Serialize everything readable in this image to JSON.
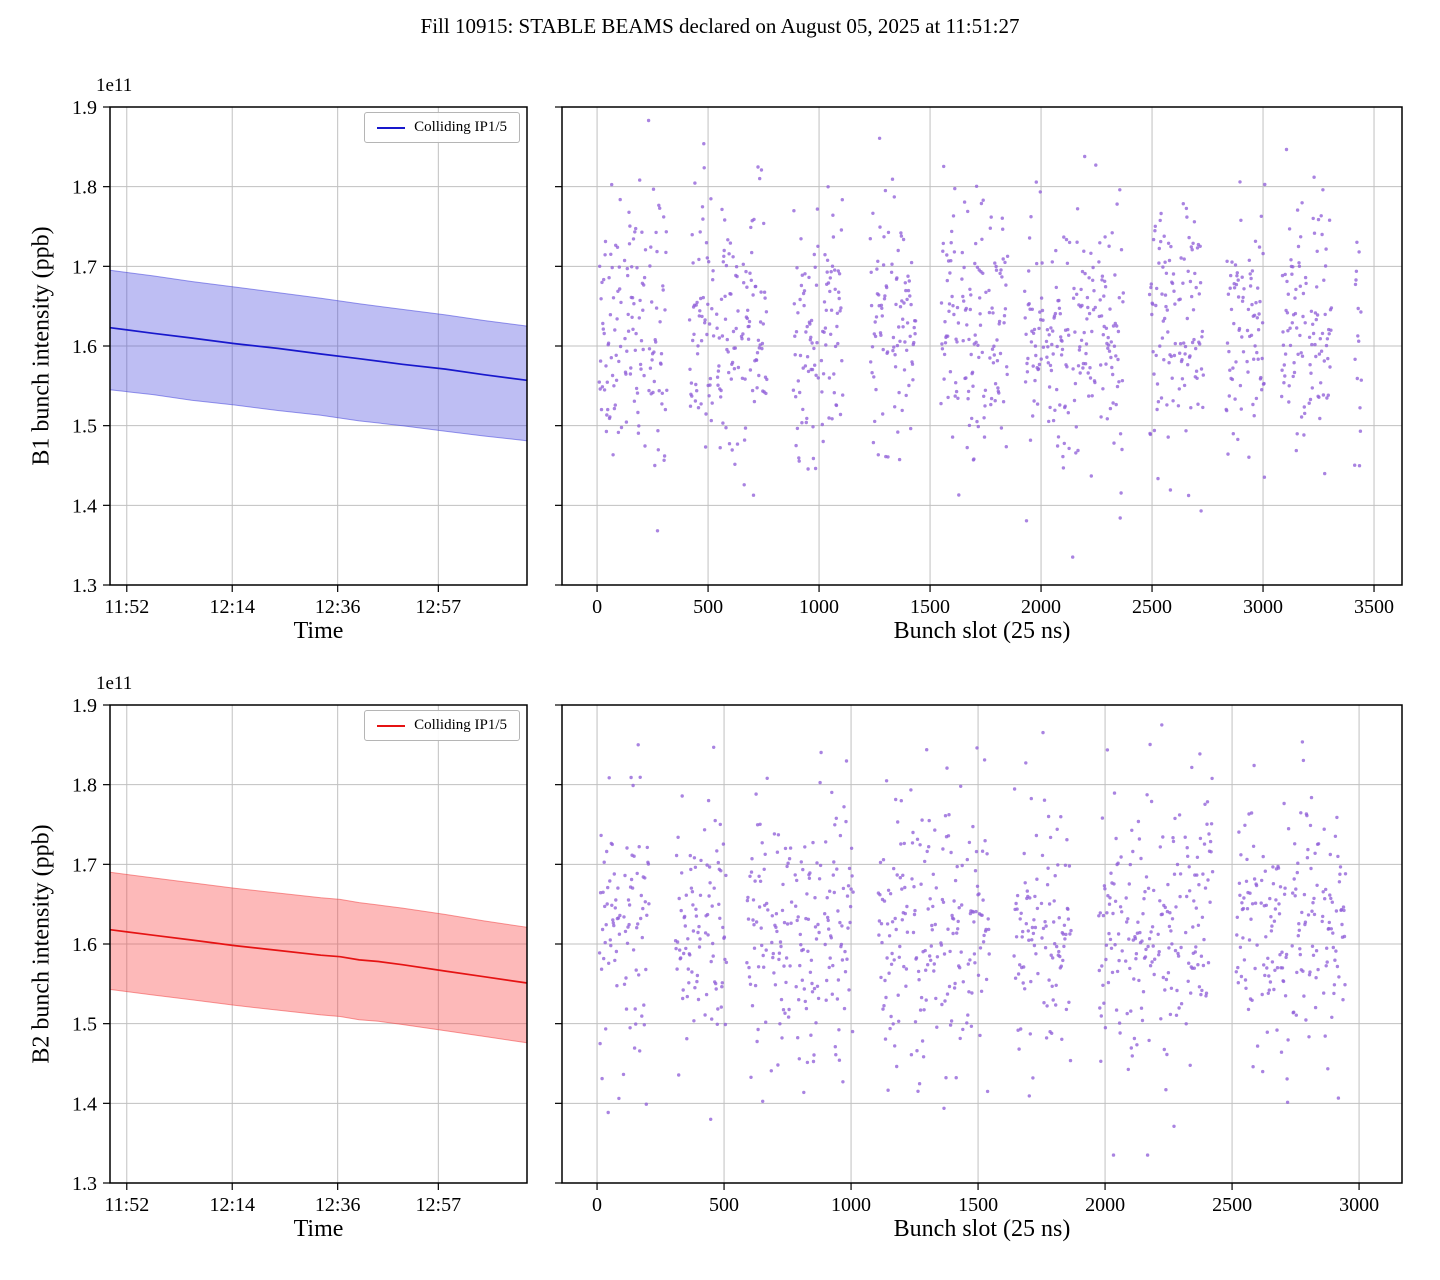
{
  "figure": {
    "title": "Fill 10915: STABLE BEAMS declared on August 05, 2025 at 11:51:27",
    "background": "#ffffff",
    "grid_color": "#c0c0c0",
    "spine_color": "#000000"
  },
  "chart_data": [
    {
      "id": "b1-time-series",
      "type": "line",
      "xlabel": "Time",
      "ylabel": "B1 bunch intensity (ppb)",
      "y_offset_label": "1e11",
      "legend": [
        "Colliding IP1/5"
      ],
      "legend_position": "upper right",
      "grid": true,
      "xlim": [
        0,
        87
      ],
      "ylim": [
        1.3,
        1.9
      ],
      "x_tick_pos": [
        3.5,
        25.5,
        47.5,
        68.5
      ],
      "x_tick_labels": [
        "11:52",
        "12:14",
        "12:36",
        "12:57"
      ],
      "y_ticks": [
        1.3,
        1.4,
        1.5,
        1.6,
        1.7,
        1.8,
        1.9
      ],
      "show_y_tick_labels": true,
      "line_color": "#1818cc",
      "band_color": "rgba(70,70,220,0.35)",
      "band_edge_color": "rgba(70,70,220,0.55)",
      "x": [
        0,
        9,
        17,
        26,
        35,
        44,
        52,
        61,
        70,
        78,
        87
      ],
      "mean": [
        1.623,
        1.616,
        1.61,
        1.603,
        1.597,
        1.59,
        1.584,
        1.577,
        1.571,
        1.564,
        1.557
      ],
      "upper": [
        1.695,
        1.688,
        1.681,
        1.674,
        1.667,
        1.66,
        1.653,
        1.646,
        1.639,
        1.632,
        1.625
      ],
      "lower": [
        1.545,
        1.539,
        1.532,
        1.526,
        1.519,
        1.513,
        1.506,
        1.5,
        1.493,
        1.487,
        1.481
      ],
      "units": "1e11 ppb"
    },
    {
      "id": "b1-bunch-slots",
      "type": "scatter",
      "xlabel": "Bunch slot (25 ns)",
      "ylabel": "",
      "grid": true,
      "xlim": [
        -158,
        3626
      ],
      "ylim": [
        1.3,
        1.9
      ],
      "x_ticks": [
        0,
        500,
        1000,
        1500,
        2000,
        2500,
        3000,
        3500
      ],
      "y_ticks": [
        1.3,
        1.4,
        1.5,
        1.6,
        1.7,
        1.8,
        1.9
      ],
      "show_y_tick_labels": false,
      "dot_color": "#9160d8",
      "dot_opacity": 0.78,
      "points_synthesis": {
        "seed": 11,
        "slot_start": 10,
        "slot_max": 3444,
        "y_mean": 1.622,
        "y_std": 0.08,
        "y_min": 1.335,
        "y_max": 1.883,
        "low_outlier_rate": 0.013,
        "high_outlier_rate": 0.009,
        "train": {
          "n_sub_min": 2,
          "n_sub_max": 4,
          "sub_len_min": 40,
          "sub_len_max": 60,
          "sub_spacing": 2,
          "sub_gap": 12,
          "macro_gap_min": 60,
          "macro_gap_max": 115
        }
      }
    },
    {
      "id": "b2-time-series",
      "type": "line",
      "xlabel": "Time",
      "ylabel": "B2 bunch intensity (ppb)",
      "y_offset_label": "1e11",
      "legend": [
        "Colliding IP1/5"
      ],
      "legend_position": "upper right",
      "grid": true,
      "xlim": [
        0,
        87
      ],
      "ylim": [
        1.3,
        1.9
      ],
      "x_tick_pos": [
        3.5,
        25.5,
        47.5,
        68.5
      ],
      "x_tick_labels": [
        "11:52",
        "12:14",
        "12:36",
        "12:57"
      ],
      "y_ticks": [
        1.3,
        1.4,
        1.5,
        1.6,
        1.7,
        1.8,
        1.9
      ],
      "show_y_tick_labels": true,
      "line_color": "#e51313",
      "band_color": "rgba(250,70,70,0.38)",
      "band_edge_color": "rgba(240,70,70,0.55)",
      "x": [
        0,
        9,
        17,
        26,
        35,
        44,
        48,
        52,
        56,
        61,
        70,
        78,
        87
      ],
      "mean": [
        1.618,
        1.611,
        1.605,
        1.598,
        1.592,
        1.586,
        1.584,
        1.58,
        1.578,
        1.574,
        1.566,
        1.559,
        1.551
      ],
      "upper": [
        1.69,
        1.683,
        1.677,
        1.67,
        1.664,
        1.658,
        1.656,
        1.652,
        1.649,
        1.645,
        1.637,
        1.629,
        1.621
      ],
      "lower": [
        1.543,
        1.536,
        1.53,
        1.523,
        1.517,
        1.511,
        1.509,
        1.505,
        1.503,
        1.499,
        1.491,
        1.484,
        1.476
      ],
      "units": "1e11 ppb"
    },
    {
      "id": "b2-bunch-slots",
      "type": "scatter",
      "xlabel": "Bunch slot (25 ns)",
      "ylabel": "",
      "grid": true,
      "xlim": [
        -138,
        3169
      ],
      "ylim": [
        1.3,
        1.9
      ],
      "x_ticks": [
        0,
        500,
        1000,
        1500,
        2000,
        2500,
        3000
      ],
      "y_ticks": [
        1.3,
        1.4,
        1.5,
        1.6,
        1.7,
        1.8,
        1.9
      ],
      "show_y_tick_labels": false,
      "dot_color": "#9160d8",
      "dot_opacity": 0.78,
      "points_synthesis": {
        "seed": 23,
        "slot_start": 10,
        "slot_max": 3060,
        "y_mean": 1.615,
        "y_std": 0.08,
        "y_min": 1.335,
        "y_max": 1.875,
        "low_outlier_rate": 0.013,
        "high_outlier_rate": 0.009,
        "train": {
          "n_sub_min": 2,
          "n_sub_max": 4,
          "sub_len_min": 40,
          "sub_len_max": 60,
          "sub_spacing": 2,
          "sub_gap": 12,
          "macro_gap_min": 55,
          "macro_gap_max": 100
        }
      }
    }
  ]
}
